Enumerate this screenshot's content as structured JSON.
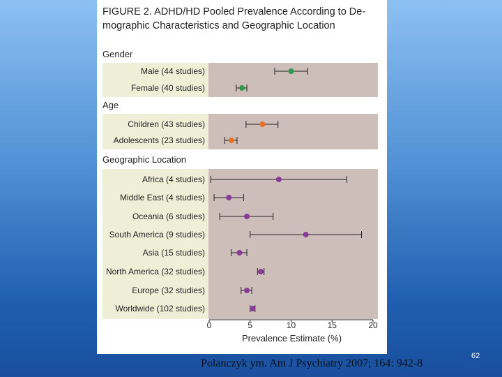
{
  "figure": {
    "title_lines": [
      "FIGURE 2. ADHD/HD Pooled Prevalence According to De-",
      "mographic Characteristics and Geographic Location"
    ]
  },
  "citation": "Polanczyk ym. Am J Psychiatry 2007; 164: 942-8",
  "slide_number": "62",
  "colors": {
    "green": "#2e9a4a",
    "orange": "#e8702a",
    "purple": "#8a3b9a",
    "panel": "#cdbeb9",
    "label_bg": "#efeed6"
  },
  "chart_data": {
    "type": "forest",
    "title": "ADHD/HD Pooled Prevalence According to Demographic Characteristics and Geographic Location",
    "xlabel": "Prevalence Estimate (%)",
    "xlim": [
      0,
      20
    ],
    "xticks": [
      0,
      5,
      10,
      15,
      20
    ],
    "groups": [
      {
        "name": "Gender",
        "color": "green",
        "rows": [
          {
            "label": "Male (44 studies)",
            "estimate": 10.0,
            "ci": [
              8.0,
              12.0
            ]
          },
          {
            "label": "Female (40 studies)",
            "estimate": 4.0,
            "ci": [
              3.3,
              4.6
            ]
          }
        ]
      },
      {
        "name": "Age",
        "color": "orange",
        "rows": [
          {
            "label": "Children (43 studies)",
            "estimate": 6.5,
            "ci": [
              4.5,
              8.4
            ]
          },
          {
            "label": "Adolescents (23 studies)",
            "estimate": 2.7,
            "ci": [
              1.9,
              3.4
            ]
          }
        ]
      },
      {
        "name": "Geographic Location",
        "color": "purple",
        "rows": [
          {
            "label": "Africa (4 studies)",
            "estimate": 8.5,
            "ci": [
              0.2,
              16.8
            ]
          },
          {
            "label": "Middle East (4 studies)",
            "estimate": 2.4,
            "ci": [
              0.6,
              4.2
            ]
          },
          {
            "label": "Oceania (6 studies)",
            "estimate": 4.6,
            "ci": [
              1.3,
              7.8
            ]
          },
          {
            "label": "South America (9 studies)",
            "estimate": 11.8,
            "ci": [
              5.0,
              18.6
            ]
          },
          {
            "label": "Asia (15 studies)",
            "estimate": 3.7,
            "ci": [
              2.7,
              4.6
            ]
          },
          {
            "label": "North America (32 studies)",
            "estimate": 6.3,
            "ci": [
              5.9,
              6.7
            ]
          },
          {
            "label": "Europe (32 studies)",
            "estimate": 4.6,
            "ci": [
              3.9,
              5.2
            ]
          },
          {
            "label": "Worldwide (102 studies)",
            "estimate": 5.3,
            "ci": [
              5.0,
              5.6
            ]
          }
        ]
      }
    ]
  }
}
